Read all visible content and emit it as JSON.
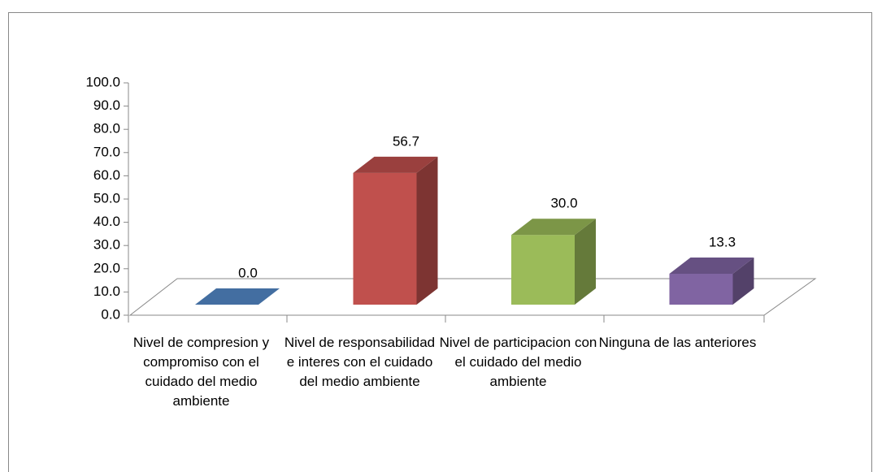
{
  "chart_data": {
    "type": "bar3d",
    "categories": [
      "Nivel de compresion y compromiso con el cuidado del medio ambiente",
      "Nivel de responsabilidad e interes con el cuidado del medio ambiente",
      "Nivel de participacion con el cuidado del medio ambiente",
      "Ninguna de las anteriores"
    ],
    "values": [
      0,
      56.7,
      30,
      13.3
    ],
    "value_labels": [
      "0.0",
      "56.7",
      "30.0",
      "13.3"
    ],
    "colors": [
      "#4f81bd",
      "#c0504d",
      "#9bbb59",
      "#8064a2"
    ],
    "ylim": [
      0,
      100
    ],
    "yticks": [
      {
        "value": 0,
        "label": "0.0"
      },
      {
        "value": 10,
        "label": "10.0"
      },
      {
        "value": 20,
        "label": "20.0"
      },
      {
        "value": 30,
        "label": "30.0"
      },
      {
        "value": 40,
        "label": "40.0"
      },
      {
        "value": 50,
        "label": "50.0"
      },
      {
        "value": 60,
        "label": "60.0"
      },
      {
        "value": 70,
        "label": "70.0"
      },
      {
        "value": 80,
        "label": "80.0"
      },
      {
        "value": 90,
        "label": "90.0"
      },
      {
        "value": 100,
        "label": "100.0"
      }
    ]
  }
}
